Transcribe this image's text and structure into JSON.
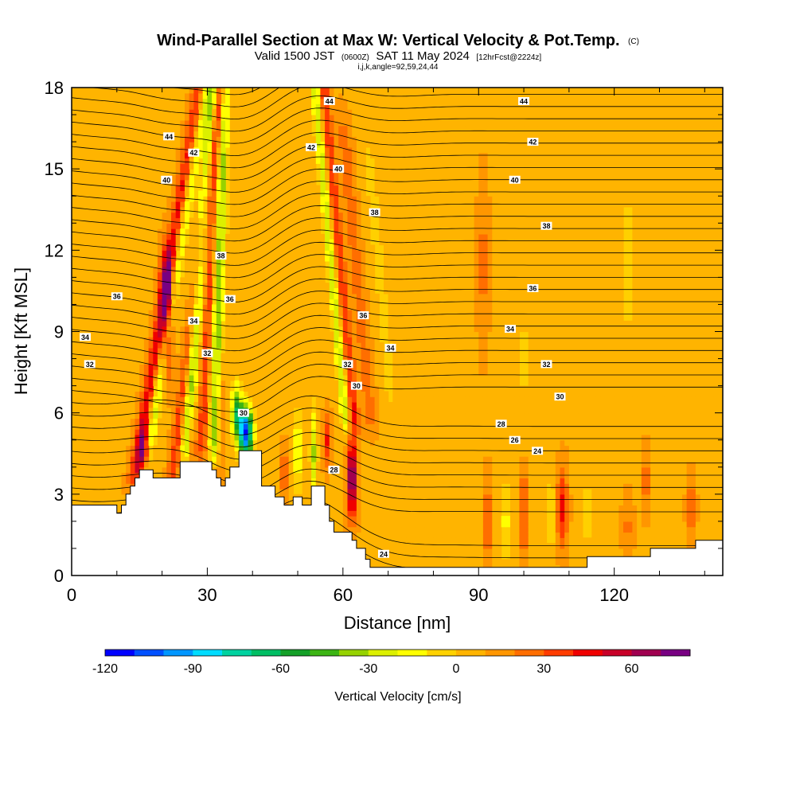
{
  "chart_data": {
    "type": "heatmap",
    "title": "Wind-Parallel Section at Max W: Vertical Velocity & Pot.Temp.",
    "title_mark": "(C)",
    "subtitle_parts": [
      "Valid 1500 JST",
      "(0600Z)",
      "SAT 11 May 2024",
      "[12hrFcst@2224z]"
    ],
    "subtitle2": "i,j,k,angle=92,59,24,44",
    "xlabel": "Distance [nm]",
    "ylabel": "Height [Kft MSL]",
    "xlim": [
      0,
      144
    ],
    "ylim": [
      0,
      18
    ],
    "xticks": [
      0,
      30,
      60,
      90,
      120
    ],
    "yticks": [
      0,
      3,
      6,
      9,
      12,
      15,
      18
    ],
    "colorbar": {
      "label": "Vertical Velocity [cm/s]",
      "ticks": [
        -120,
        -90,
        -60,
        -30,
        0,
        30,
        60
      ],
      "min": -120,
      "max": 80,
      "step": 10,
      "colors": [
        "#0000ff",
        "#0050ff",
        "#0096ff",
        "#00dcff",
        "#00d2a0",
        "#00be64",
        "#14a028",
        "#3cb414",
        "#96d200",
        "#dcf000",
        "#ffff00",
        "#ffd200",
        "#ffb400",
        "#ff9600",
        "#ff6e00",
        "#ff3c00",
        "#f00000",
        "#c80028",
        "#a00050",
        "#780082"
      ]
    },
    "terrain": [
      [
        0,
        2.6
      ],
      [
        10,
        2.6
      ],
      [
        10,
        2.3
      ],
      [
        11,
        2.3
      ],
      [
        11,
        2.6
      ],
      [
        12,
        2.6
      ],
      [
        12,
        3.0
      ],
      [
        13,
        3.0
      ],
      [
        13,
        3.3
      ],
      [
        14,
        3.3
      ],
      [
        14,
        3.6
      ],
      [
        15,
        3.6
      ],
      [
        15,
        3.9
      ],
      [
        18,
        3.9
      ],
      [
        18,
        3.6
      ],
      [
        24,
        3.6
      ],
      [
        24,
        4.2
      ],
      [
        31,
        4.2
      ],
      [
        31,
        3.9
      ],
      [
        32,
        3.9
      ],
      [
        32,
        3.6
      ],
      [
        33,
        3.6
      ],
      [
        33,
        3.3
      ],
      [
        34,
        3.3
      ],
      [
        34,
        3.6
      ],
      [
        35,
        3.6
      ],
      [
        35,
        4.0
      ],
      [
        37,
        4.0
      ],
      [
        37,
        4.6
      ],
      [
        42,
        4.6
      ],
      [
        42,
        3.3
      ],
      [
        45,
        3.3
      ],
      [
        45,
        2.9
      ],
      [
        47,
        2.9
      ],
      [
        47,
        2.6
      ],
      [
        49,
        2.6
      ],
      [
        49,
        2.9
      ],
      [
        51,
        2.9
      ],
      [
        51,
        2.6
      ],
      [
        53,
        2.6
      ],
      [
        53,
        3.3
      ],
      [
        56,
        3.3
      ],
      [
        56,
        2.6
      ],
      [
        57,
        2.6
      ],
      [
        57,
        2.0
      ],
      [
        58,
        2.0
      ],
      [
        58,
        1.6
      ],
      [
        62,
        1.6
      ],
      [
        62,
        1.3
      ],
      [
        63,
        1.3
      ],
      [
        63,
        1.0
      ],
      [
        65,
        1.0
      ],
      [
        65,
        0.6
      ],
      [
        66,
        0.6
      ],
      [
        66,
        0.3
      ],
      [
        114,
        0.3
      ],
      [
        114,
        0.7
      ],
      [
        128,
        0.7
      ],
      [
        128,
        1.0
      ],
      [
        138,
        1.0
      ],
      [
        138,
        1.3
      ],
      [
        144,
        1.3
      ]
    ],
    "theta_levels": [
      24,
      26,
      28,
      30,
      32,
      34,
      36,
      38,
      40,
      42,
      44
    ],
    "contour_labels": [
      {
        "value": "44",
        "x": 57,
        "y": 17.5
      },
      {
        "value": "44",
        "x": 100,
        "y": 17.5
      },
      {
        "value": "44",
        "x": 21.5,
        "y": 16.2
      },
      {
        "value": "42",
        "x": 27,
        "y": 15.6
      },
      {
        "value": "42",
        "x": 53,
        "y": 15.8
      },
      {
        "value": "42",
        "x": 102,
        "y": 16.0
      },
      {
        "value": "40",
        "x": 21,
        "y": 14.6
      },
      {
        "value": "40",
        "x": 59,
        "y": 15.0
      },
      {
        "value": "40",
        "x": 98,
        "y": 14.6
      },
      {
        "value": "38",
        "x": 67,
        "y": 13.4
      },
      {
        "value": "38",
        "x": 105,
        "y": 12.9
      },
      {
        "value": "38",
        "x": 33,
        "y": 11.8
      },
      {
        "value": "36",
        "x": 10,
        "y": 10.3
      },
      {
        "value": "36",
        "x": 35,
        "y": 10.2
      },
      {
        "value": "36",
        "x": 64.5,
        "y": 9.6
      },
      {
        "value": "36",
        "x": 102,
        "y": 10.6
      },
      {
        "value": "34",
        "x": 27,
        "y": 9.4
      },
      {
        "value": "34",
        "x": 3,
        "y": 8.8
      },
      {
        "value": "34",
        "x": 70.5,
        "y": 8.4
      },
      {
        "value": "34",
        "x": 97,
        "y": 9.1
      },
      {
        "value": "32",
        "x": 4,
        "y": 7.8
      },
      {
        "value": "32",
        "x": 30,
        "y": 8.2
      },
      {
        "value": "32",
        "x": 61,
        "y": 7.8
      },
      {
        "value": "32",
        "x": 105,
        "y": 7.8
      },
      {
        "value": "30",
        "x": 63,
        "y": 7.0
      },
      {
        "value": "30",
        "x": 108,
        "y": 6.6
      },
      {
        "value": "30",
        "x": 38,
        "y": 6.0
      },
      {
        "value": "28",
        "x": 95,
        "y": 5.6
      },
      {
        "value": "28",
        "x": 58,
        "y": 3.9
      },
      {
        "value": "26",
        "x": 98,
        "y": 5.0
      },
      {
        "value": "24",
        "x": 103,
        "y": 4.6
      },
      {
        "value": "24",
        "x": 69,
        "y": 0.8
      }
    ]
  }
}
